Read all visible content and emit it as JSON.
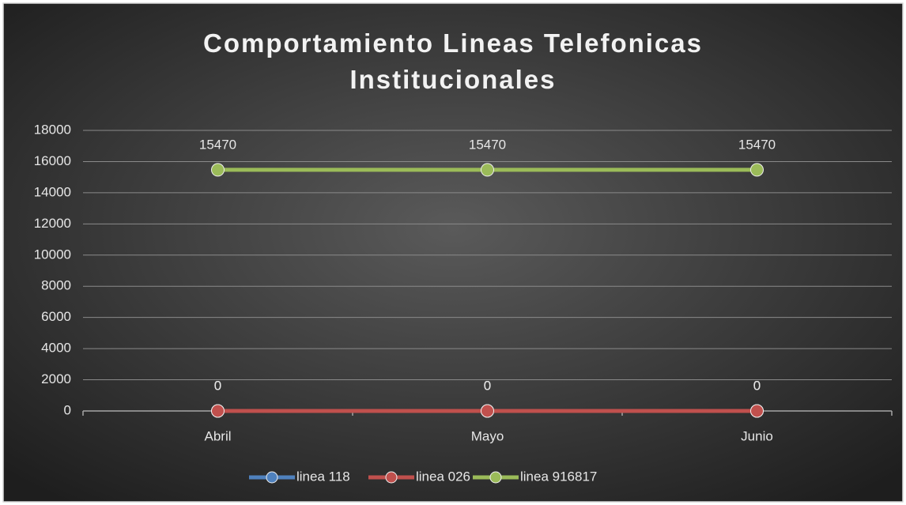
{
  "chart_data": {
    "type": "line",
    "title": "Comportamiento Lineas Telefonicas Institucionales",
    "categories": [
      "Abril",
      "Mayo",
      "Junio"
    ],
    "series": [
      {
        "name": "linea 118",
        "color": "#4f81bd",
        "values": [
          0,
          0,
          0
        ]
      },
      {
        "name": "linea 026",
        "color": "#c0504d",
        "values": [
          0,
          0,
          0
        ]
      },
      {
        "name": "linea 916817",
        "color": "#9bbb59",
        "values": [
          15470,
          15470,
          15470
        ]
      }
    ],
    "ylim": [
      0,
      18000
    ],
    "yticks": [
      0,
      2000,
      4000,
      6000,
      8000,
      10000,
      12000,
      14000,
      16000,
      18000
    ],
    "grid": true,
    "legend": "bottom"
  }
}
